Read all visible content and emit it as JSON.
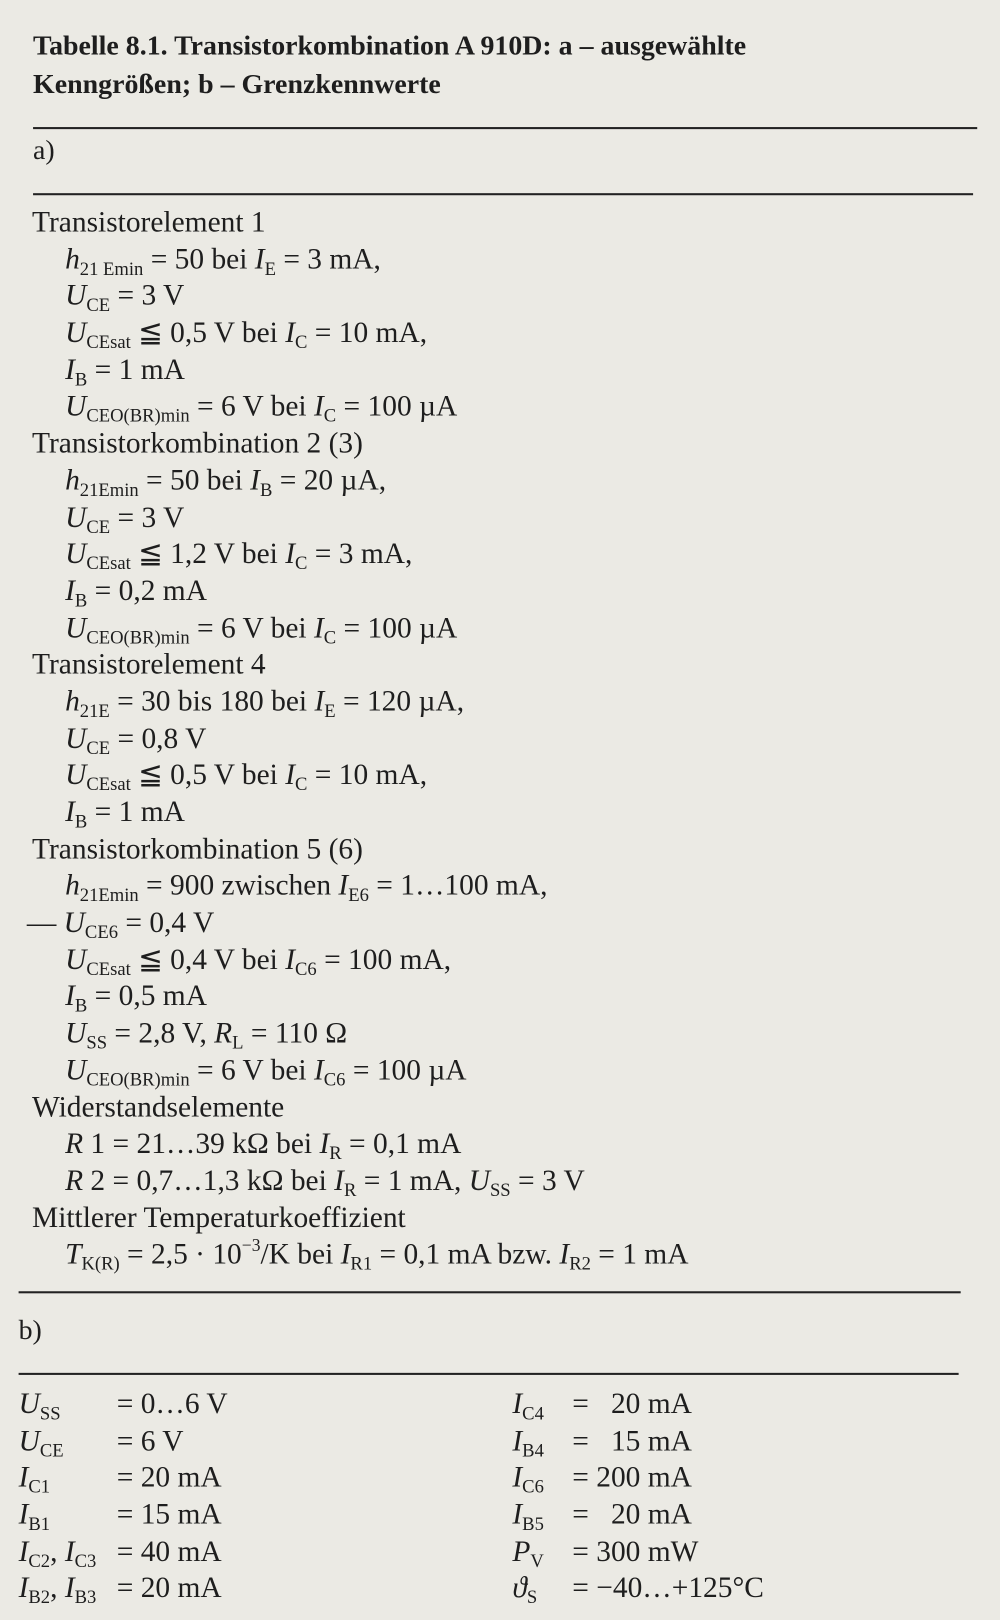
{
  "title": {
    "line1": "Tabelle 8.1.  Transistorkombination A 910D: a – ausgewählte",
    "line2": "Kenngrößen; b – Grenzkennwerte"
  },
  "a": {
    "label": "a)",
    "lines": [
      {
        "k": "h",
        "segs": [
          [
            "n",
            "Transistorelement 1"
          ]
        ]
      },
      {
        "k": "i",
        "segs": [
          [
            "i",
            "h"
          ],
          [
            "sub",
            "21 Emin"
          ],
          [
            "n",
            " = 50 bei "
          ],
          [
            "i",
            "I"
          ],
          [
            "sub",
            "E"
          ],
          [
            "n",
            " = 3 mA,"
          ]
        ]
      },
      {
        "k": "i",
        "segs": [
          [
            "i",
            "U"
          ],
          [
            "sub",
            "CE"
          ],
          [
            "n",
            " = 3 V"
          ]
        ]
      },
      {
        "k": "i",
        "segs": [
          [
            "i",
            "U"
          ],
          [
            "sub",
            "CEsat"
          ],
          [
            "n",
            " ≦ 0,5 V bei "
          ],
          [
            "i",
            "I"
          ],
          [
            "sub",
            "C"
          ],
          [
            "n",
            " = 10 mA,"
          ]
        ]
      },
      {
        "k": "i",
        "segs": [
          [
            "i",
            "I"
          ],
          [
            "sub",
            "B"
          ],
          [
            "n",
            " = 1 mA"
          ]
        ]
      },
      {
        "k": "i",
        "segs": [
          [
            "i",
            "U"
          ],
          [
            "sub",
            "CEO(BR)min"
          ],
          [
            "n",
            " = 6 V bei "
          ],
          [
            "i",
            "I"
          ],
          [
            "sub",
            "C"
          ],
          [
            "n",
            " = 100 µA"
          ]
        ]
      },
      {
        "k": "h",
        "segs": [
          [
            "n",
            "Transistorkombination 2 (3)"
          ]
        ]
      },
      {
        "k": "i",
        "segs": [
          [
            "i",
            "h"
          ],
          [
            "sub",
            "21Emin"
          ],
          [
            "n",
            " = 50 bei "
          ],
          [
            "i",
            "I"
          ],
          [
            "sub",
            "B"
          ],
          [
            "n",
            " = 20 µA,"
          ]
        ]
      },
      {
        "k": "i",
        "segs": [
          [
            "i",
            "U"
          ],
          [
            "sub",
            "CE"
          ],
          [
            "n",
            " = 3 V"
          ]
        ]
      },
      {
        "k": "i",
        "segs": [
          [
            "i",
            "U"
          ],
          [
            "sub",
            "CEsat"
          ],
          [
            "n",
            " ≦ 1,2 V bei "
          ],
          [
            "i",
            "I"
          ],
          [
            "sub",
            "C"
          ],
          [
            "n",
            " = 3 mA,"
          ]
        ]
      },
      {
        "k": "i",
        "segs": [
          [
            "i",
            "I"
          ],
          [
            "sub",
            "B"
          ],
          [
            "n",
            " = 0,2 mA"
          ]
        ]
      },
      {
        "k": "i",
        "segs": [
          [
            "i",
            "U"
          ],
          [
            "sub",
            "CEO(BR)min"
          ],
          [
            "n",
            " = 6 V bei "
          ],
          [
            "i",
            "I"
          ],
          [
            "sub",
            "C"
          ],
          [
            "n",
            " = 100 µA"
          ]
        ]
      },
      {
        "k": "h",
        "segs": [
          [
            "n",
            "Transistorelement 4"
          ]
        ]
      },
      {
        "k": "i",
        "segs": [
          [
            "i",
            "h"
          ],
          [
            "sub",
            "21E"
          ],
          [
            "n",
            " = 30 bis 180 bei "
          ],
          [
            "i",
            "I"
          ],
          [
            "sub",
            "E"
          ],
          [
            "n",
            " = 120 µA,"
          ]
        ]
      },
      {
        "k": "i",
        "segs": [
          [
            "i",
            "U"
          ],
          [
            "sub",
            "CE"
          ],
          [
            "n",
            " = 0,8 V"
          ]
        ]
      },
      {
        "k": "i",
        "segs": [
          [
            "i",
            "U"
          ],
          [
            "sub",
            "CEsat"
          ],
          [
            "n",
            " ≦ 0,5 V bei "
          ],
          [
            "i",
            "I"
          ],
          [
            "sub",
            "C"
          ],
          [
            "n",
            " = 10 mA,"
          ]
        ]
      },
      {
        "k": "i",
        "segs": [
          [
            "i",
            "I"
          ],
          [
            "sub",
            "B"
          ],
          [
            "n",
            " = 1 mA"
          ]
        ]
      },
      {
        "k": "h",
        "segs": [
          [
            "n",
            "Transistorkombination 5 (6)"
          ]
        ]
      },
      {
        "k": "i",
        "segs": [
          [
            "i",
            "h"
          ],
          [
            "sub",
            "21Emin"
          ],
          [
            "n",
            " = 900 zwischen "
          ],
          [
            "i",
            "I"
          ],
          [
            "sub",
            "E6"
          ],
          [
            "n",
            " = 1…100 mA,"
          ]
        ]
      },
      {
        "k": "d",
        "segs": [
          [
            "n",
            "— "
          ],
          [
            "i",
            "U"
          ],
          [
            "sub",
            "CE6"
          ],
          [
            "n",
            " = 0,4 V"
          ]
        ]
      },
      {
        "k": "i",
        "segs": [
          [
            "i",
            "U"
          ],
          [
            "sub",
            "CEsat"
          ],
          [
            "n",
            " ≦ 0,4 V bei "
          ],
          [
            "i",
            "I"
          ],
          [
            "sub",
            "C6"
          ],
          [
            "n",
            " = 100 mA,"
          ]
        ]
      },
      {
        "k": "i",
        "segs": [
          [
            "i",
            "I"
          ],
          [
            "sub",
            "B"
          ],
          [
            "n",
            " = 0,5 mA"
          ]
        ]
      },
      {
        "k": "i",
        "segs": [
          [
            "i",
            "U"
          ],
          [
            "sub",
            "SS"
          ],
          [
            "n",
            " = 2,8 V, "
          ],
          [
            "i",
            "R"
          ],
          [
            "sub",
            "L"
          ],
          [
            "n",
            " = 110 Ω"
          ]
        ]
      },
      {
        "k": "i",
        "segs": [
          [
            "i",
            "U"
          ],
          [
            "sub",
            "CEO(BR)min"
          ],
          [
            "n",
            " = 6 V bei "
          ],
          [
            "i",
            "I"
          ],
          [
            "sub",
            "C6"
          ],
          [
            "n",
            " = 100 µA"
          ]
        ]
      },
      {
        "k": "h",
        "segs": [
          [
            "n",
            "Widerstandselemente"
          ]
        ]
      },
      {
        "k": "i",
        "segs": [
          [
            "i",
            "R"
          ],
          [
            "n",
            " 1 = 21…39 kΩ bei "
          ],
          [
            "i",
            "I"
          ],
          [
            "sub",
            "R"
          ],
          [
            "n",
            " = 0,1 mA"
          ]
        ]
      },
      {
        "k": "i",
        "segs": [
          [
            "i",
            "R"
          ],
          [
            "n",
            " 2 = 0,7…1,3 kΩ bei "
          ],
          [
            "i",
            "I"
          ],
          [
            "sub",
            "R"
          ],
          [
            "n",
            " = 1 mA, "
          ],
          [
            "i",
            "U"
          ],
          [
            "sub",
            "SS"
          ],
          [
            "n",
            " = 3 V"
          ]
        ]
      },
      {
        "k": "h",
        "segs": [
          [
            "n",
            "Mittlerer Temperaturkoeffizient"
          ]
        ]
      },
      {
        "k": "i",
        "segs": [
          [
            "i",
            "T"
          ],
          [
            "sub",
            "K(R)"
          ],
          [
            "n",
            " = 2,5 · 10"
          ],
          [
            "sup",
            "−3"
          ],
          [
            "n",
            "/K bei "
          ],
          [
            "i",
            "I"
          ],
          [
            "sub",
            "R1"
          ],
          [
            "n",
            " = 0,1 mA bzw. "
          ],
          [
            "i",
            "I"
          ],
          [
            "sub",
            "R2"
          ],
          [
            "n",
            " = 1 mA"
          ]
        ]
      }
    ]
  },
  "b": {
    "label": "b)",
    "rows": [
      {
        "left": [
          [
            "i",
            "U"
          ],
          [
            "sub",
            "SS"
          ]
        ],
        "left_value": "= 0…6 V",
        "right": [
          [
            "i",
            "I"
          ],
          [
            "sub",
            "C4"
          ]
        ],
        "right_value": "=   20 mA"
      },
      {
        "left": [
          [
            "i",
            "U"
          ],
          [
            "sub",
            "CE"
          ]
        ],
        "left_value": "= 6 V",
        "right": [
          [
            "i",
            "I"
          ],
          [
            "sub",
            "B4"
          ]
        ],
        "right_value": "=   15 mA"
      },
      {
        "left": [
          [
            "i",
            "I"
          ],
          [
            "sub",
            "C1"
          ]
        ],
        "left_value": "= 20 mA",
        "right": [
          [
            "i",
            "I"
          ],
          [
            "sub",
            "C6"
          ]
        ],
        "right_value": "= 200 mA"
      },
      {
        "left": [
          [
            "i",
            "I"
          ],
          [
            "sub",
            "B1"
          ]
        ],
        "left_value": "= 15 mA",
        "right": [
          [
            "i",
            "I"
          ],
          [
            "sub",
            "B5"
          ]
        ],
        "right_value": "=   20 mA"
      },
      {
        "left": [
          [
            "i",
            "I"
          ],
          [
            "sub",
            "C2"
          ],
          [
            "n",
            ", "
          ],
          [
            "i",
            "I"
          ],
          [
            "sub",
            "C3"
          ]
        ],
        "left_value": "= 40 mA",
        "right": [
          [
            "i",
            "P"
          ],
          [
            "sub",
            "V"
          ]
        ],
        "right_value": "= 300 mW"
      },
      {
        "left": [
          [
            "i",
            "I"
          ],
          [
            "sub",
            "B2"
          ],
          [
            "n",
            ", "
          ],
          [
            "i",
            "I"
          ],
          [
            "sub",
            "B3"
          ]
        ],
        "left_value": "= 20 mA",
        "right": [
          [
            "i",
            "ϑ"
          ],
          [
            "sub",
            "S"
          ]
        ],
        "right_value": "= −40…+125°C"
      }
    ]
  }
}
